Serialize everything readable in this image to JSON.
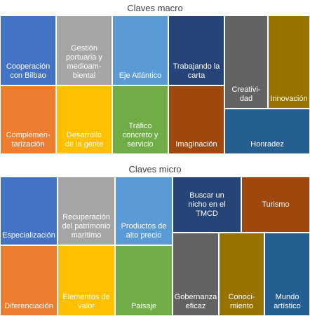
{
  "macro": {
    "title": "Claves macro",
    "tiles": [
      {
        "label": "Cooperación\ncon Bilbao",
        "color": "#4472c4"
      },
      {
        "label": "Gestión\nportuaria y\nmedioam-\nbiental",
        "color": "#a5a5a5"
      },
      {
        "label": "Eje Atlántico",
        "color": "#5b9bd5"
      },
      {
        "label": "Trabajando la\ncarta",
        "color": "#264478"
      },
      {
        "label": "Creativi-\ndad",
        "color": "#636363"
      },
      {
        "label": "Innovación",
        "color": "#997300"
      },
      {
        "label": "Complemen-\ntarización",
        "color": "#ed7d31"
      },
      {
        "label": "Desarrollo\nde la gente",
        "color": "#ffc000"
      },
      {
        "label": "Tráfico\nconcreto y\nservicio",
        "color": "#70ad47"
      },
      {
        "label": "Imaginación",
        "color": "#9e480e"
      },
      {
        "label": "Honradez",
        "color": "#255e91"
      }
    ]
  },
  "micro": {
    "title": "Claves micro",
    "tiles": [
      {
        "label": "Especialización",
        "color": "#4472c4"
      },
      {
        "label": "Recuperación\ndel patrimonio\nmarítimo",
        "color": "#a5a5a5"
      },
      {
        "label": "Productos de\nalto precio",
        "color": "#5b9bd5"
      },
      {
        "label": "Buscar un\nnicho en el\nTMCD",
        "color": "#264478"
      },
      {
        "label": "Turismo",
        "color": "#9e480e"
      },
      {
        "label": "Diferenciación",
        "color": "#ed7d31"
      },
      {
        "label": "Elementos de\nvalor",
        "color": "#ffc000"
      },
      {
        "label": "Paisaje",
        "color": "#70ad47"
      },
      {
        "label": "Gobernanza\neficaz",
        "color": "#636363"
      },
      {
        "label": "Conoci-\nmiento",
        "color": "#997300"
      },
      {
        "label": "Mundo\nartístico",
        "color": "#255e91"
      }
    ]
  }
}
